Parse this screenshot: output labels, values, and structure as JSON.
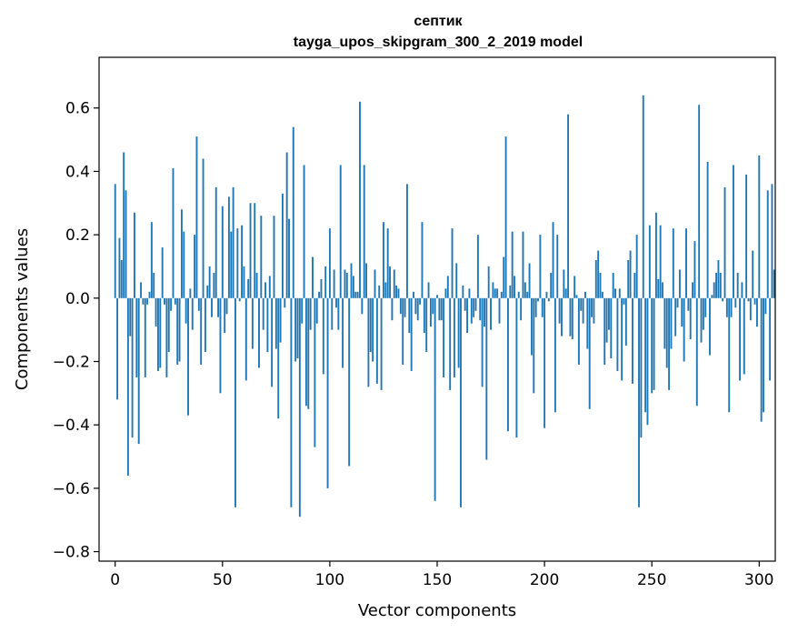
{
  "chart_data": {
    "type": "bar",
    "title": "септик",
    "subtitle": "tayga_upos_skipgram_300_2_2019 model",
    "xlabel": "Vector components",
    "ylabel": "Components values",
    "xlim": [
      -7.5,
      307.5
    ],
    "ylim": [
      -0.83,
      0.76
    ],
    "xticks": [
      0,
      50,
      100,
      150,
      200,
      250,
      300
    ],
    "xtick_labels": [
      "0",
      "50",
      "100",
      "150",
      "200",
      "250",
      "300"
    ],
    "yticks": [
      -0.8,
      -0.6,
      -0.4,
      -0.2,
      0.0,
      0.2,
      0.4,
      0.6
    ],
    "ytick_labels": [
      "−0.8",
      "−0.6",
      "−0.4",
      "−0.2",
      "0.0",
      "0.2",
      "0.4",
      "0.6"
    ],
    "bar_color": "#1f77b4",
    "grid": false,
    "legend": "none",
    "values": [
      0.36,
      -0.32,
      0.19,
      0.12,
      0.46,
      0.34,
      -0.56,
      -0.12,
      -0.44,
      0.27,
      -0.25,
      -0.46,
      0.05,
      -0.02,
      -0.25,
      -0.02,
      0.02,
      0.24,
      0.08,
      -0.09,
      -0.23,
      -0.22,
      0.16,
      -0.02,
      -0.25,
      -0.17,
      -0.04,
      0.41,
      -0.02,
      -0.21,
      -0.2,
      0.28,
      0.21,
      -0.08,
      -0.37,
      0.03,
      -0.1,
      0.2,
      0.51,
      -0.04,
      -0.21,
      0.44,
      -0.17,
      0.04,
      0.1,
      -0.06,
      0.08,
      0.35,
      -0.06,
      -0.3,
      0.29,
      -0.11,
      -0.05,
      0.32,
      0.21,
      0.35,
      -0.66,
      0.22,
      -0.01,
      0.23,
      0.1,
      -0.26,
      0.06,
      0.3,
      -0.16,
      0.3,
      0.08,
      -0.22,
      0.26,
      -0.1,
      0.05,
      -0.17,
      0.07,
      -0.28,
      0.26,
      -0.16,
      -0.38,
      -0.14,
      0.33,
      -0.03,
      0.46,
      0.25,
      -0.66,
      0.54,
      -0.2,
      -0.19,
      -0.69,
      -0.08,
      0.42,
      -0.34,
      -0.35,
      -0.1,
      0.13,
      -0.47,
      -0.08,
      0.02,
      0.06,
      -0.24,
      0.1,
      -0.6,
      0.22,
      -0.1,
      0.09,
      -0.03,
      -0.1,
      0.42,
      -0.22,
      0.09,
      0.08,
      -0.53,
      0.11,
      0.07,
      0.02,
      0.02,
      0.62,
      -0.05,
      0.42,
      0.11,
      -0.28,
      -0.17,
      -0.2,
      0.09,
      -0.27,
      0.04,
      -0.29,
      0.24,
      0.05,
      0.22,
      0.1,
      -0.07,
      0.09,
      0.04,
      0.03,
      -0.05,
      -0.21,
      -0.06,
      0.36,
      -0.11,
      -0.23,
      0.02,
      -0.05,
      -0.07,
      -0.02,
      0.24,
      -0.11,
      -0.17,
      0.05,
      -0.09,
      -0.05,
      -0.64,
      0.01,
      -0.07,
      -0.07,
      -0.25,
      0.03,
      0.07,
      -0.29,
      0.22,
      -0.25,
      0.11,
      -0.22,
      -0.66,
      0.04,
      -0.04,
      -0.11,
      0.03,
      -0.08,
      -0.06,
      -0.04,
      0.2,
      -0.07,
      -0.28,
      -0.09,
      -0.51,
      0.1,
      -0.1,
      0.05,
      0.03,
      0.03,
      -0.08,
      0.02,
      0.13,
      0.51,
      -0.42,
      0.04,
      0.21,
      0.07,
      -0.44,
      0.02,
      -0.07,
      0.21,
      0.05,
      0.02,
      0.11,
      -0.18,
      -0.3,
      -0.06,
      -0.01,
      0.2,
      -0.06,
      -0.41,
      0.02,
      -0.01,
      0.08,
      0.24,
      -0.36,
      0.2,
      -0.08,
      -0.12,
      0.09,
      0.03,
      0.58,
      -0.12,
      -0.13,
      0.07,
      0.01,
      -0.21,
      -0.04,
      -0.08,
      0.02,
      -0.16,
      -0.35,
      -0.06,
      -0.08,
      0.12,
      0.15,
      0.08,
      0.02,
      -0.21,
      -0.14,
      -0.1,
      -0.19,
      0.08,
      0.03,
      -0.23,
      0.03,
      -0.26,
      -0.02,
      -0.15,
      0.12,
      0.15,
      -0.27,
      0.08,
      0.2,
      -0.66,
      -0.44,
      0.64,
      -0.36,
      -0.4,
      0.23,
      -0.3,
      -0.29,
      0.27,
      0.06,
      0.23,
      0.05,
      -0.16,
      -0.22,
      -0.29,
      -0.16,
      0.22,
      -0.12,
      -0.03,
      0.09,
      -0.09,
      -0.2,
      0.22,
      -0.04,
      -0.13,
      0.05,
      0.18,
      -0.34,
      0.61,
      -0.14,
      -0.1,
      -0.06,
      0.43,
      -0.18,
      0.01,
      0.05,
      0.08,
      0.12,
      0.08,
      -0.01,
      0.35,
      -0.06,
      -0.36,
      -0.06,
      0.42,
      -0.03,
      0.08,
      -0.26,
      0.05,
      -0.24,
      0.39,
      -0.01,
      -0.07,
      0.15,
      -0.02,
      -0.09,
      0.45,
      -0.39,
      -0.36,
      -0.05,
      0.34,
      -0.26,
      0.36,
      0.09
    ]
  }
}
